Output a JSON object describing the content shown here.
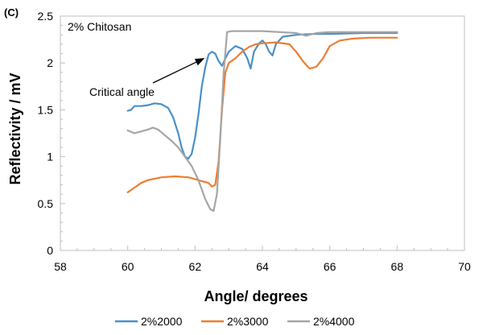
{
  "chart_data": {
    "type": "line",
    "panel_label": "(C)",
    "inset_label": "2% Chitosan",
    "annotation": {
      "text": "Critical angle",
      "points_to": {
        "x": 62.4,
        "y": 2.09
      }
    },
    "xlabel": "Angle/ degrees",
    "ylabel": "Reflectivity / mV",
    "xlim": [
      58,
      70
    ],
    "ylim": [
      0,
      2.5
    ],
    "x_ticks": [
      "58",
      "60",
      "62",
      "64",
      "66",
      "68",
      "70"
    ],
    "y_ticks": [
      "0",
      "0.5",
      "1",
      "1.5",
      "2",
      "2.5"
    ],
    "grid": false,
    "legend_position": "bottom",
    "series": [
      {
        "name": "2%2000",
        "color": "#4a90c8",
        "points": [
          [
            60.0,
            1.49
          ],
          [
            60.1,
            1.5
          ],
          [
            60.2,
            1.54
          ],
          [
            60.4,
            1.54
          ],
          [
            60.6,
            1.55
          ],
          [
            60.8,
            1.57
          ],
          [
            61.0,
            1.56
          ],
          [
            61.2,
            1.52
          ],
          [
            61.35,
            1.42
          ],
          [
            61.5,
            1.25
          ],
          [
            61.6,
            1.1
          ],
          [
            61.7,
            1.0
          ],
          [
            61.8,
            0.98
          ],
          [
            61.9,
            1.03
          ],
          [
            62.0,
            1.2
          ],
          [
            62.1,
            1.45
          ],
          [
            62.2,
            1.75
          ],
          [
            62.3,
            1.95
          ],
          [
            62.4,
            2.09
          ],
          [
            62.5,
            2.12
          ],
          [
            62.6,
            2.1
          ],
          [
            62.7,
            2.02
          ],
          [
            62.8,
            1.97
          ],
          [
            62.9,
            2.05
          ],
          [
            63.0,
            2.12
          ],
          [
            63.2,
            2.18
          ],
          [
            63.4,
            2.15
          ],
          [
            63.55,
            2.05
          ],
          [
            63.65,
            1.94
          ],
          [
            63.75,
            2.12
          ],
          [
            63.9,
            2.21
          ],
          [
            64.0,
            2.24
          ],
          [
            64.1,
            2.2
          ],
          [
            64.2,
            2.12
          ],
          [
            64.3,
            2.08
          ],
          [
            64.4,
            2.2
          ],
          [
            64.6,
            2.28
          ],
          [
            65.0,
            2.3
          ],
          [
            65.5,
            2.31
          ],
          [
            66.0,
            2.31
          ],
          [
            67.0,
            2.32
          ],
          [
            68.0,
            2.32
          ]
        ]
      },
      {
        "name": "2%3000",
        "color": "#ed7d31",
        "points": [
          [
            60.0,
            0.62
          ],
          [
            60.2,
            0.67
          ],
          [
            60.4,
            0.72
          ],
          [
            60.6,
            0.75
          ],
          [
            61.0,
            0.78
          ],
          [
            61.4,
            0.79
          ],
          [
            61.8,
            0.78
          ],
          [
            62.0,
            0.76
          ],
          [
            62.2,
            0.74
          ],
          [
            62.4,
            0.72
          ],
          [
            62.5,
            0.68
          ],
          [
            62.6,
            0.7
          ],
          [
            62.7,
            0.95
          ],
          [
            62.8,
            1.5
          ],
          [
            62.9,
            1.9
          ],
          [
            63.0,
            2.0
          ],
          [
            63.2,
            2.05
          ],
          [
            63.4,
            2.12
          ],
          [
            63.6,
            2.17
          ],
          [
            63.8,
            2.2
          ],
          [
            64.0,
            2.21
          ],
          [
            64.4,
            2.22
          ],
          [
            64.8,
            2.2
          ],
          [
            65.0,
            2.12
          ],
          [
            65.2,
            2.02
          ],
          [
            65.4,
            1.94
          ],
          [
            65.6,
            1.96
          ],
          [
            65.8,
            2.05
          ],
          [
            66.0,
            2.18
          ],
          [
            66.3,
            2.24
          ],
          [
            66.7,
            2.26
          ],
          [
            67.2,
            2.27
          ],
          [
            68.0,
            2.27
          ]
        ]
      },
      {
        "name": "2%4000",
        "color": "#a5a5a5",
        "points": [
          [
            60.0,
            1.28
          ],
          [
            60.2,
            1.25
          ],
          [
            60.4,
            1.27
          ],
          [
            60.6,
            1.29
          ],
          [
            60.75,
            1.31
          ],
          [
            60.9,
            1.29
          ],
          [
            61.1,
            1.23
          ],
          [
            61.3,
            1.17
          ],
          [
            61.5,
            1.1
          ],
          [
            61.7,
            1.0
          ],
          [
            61.9,
            0.9
          ],
          [
            62.1,
            0.75
          ],
          [
            62.3,
            0.55
          ],
          [
            62.45,
            0.44
          ],
          [
            62.55,
            0.42
          ],
          [
            62.65,
            0.6
          ],
          [
            62.75,
            1.2
          ],
          [
            62.85,
            1.9
          ],
          [
            62.95,
            2.33
          ],
          [
            63.1,
            2.34
          ],
          [
            63.5,
            2.34
          ],
          [
            64.0,
            2.34
          ],
          [
            64.5,
            2.33
          ],
          [
            65.0,
            2.32
          ],
          [
            65.3,
            2.29
          ],
          [
            65.6,
            2.32
          ],
          [
            66.0,
            2.33
          ],
          [
            67.0,
            2.33
          ],
          [
            68.0,
            2.33
          ]
        ]
      }
    ]
  }
}
